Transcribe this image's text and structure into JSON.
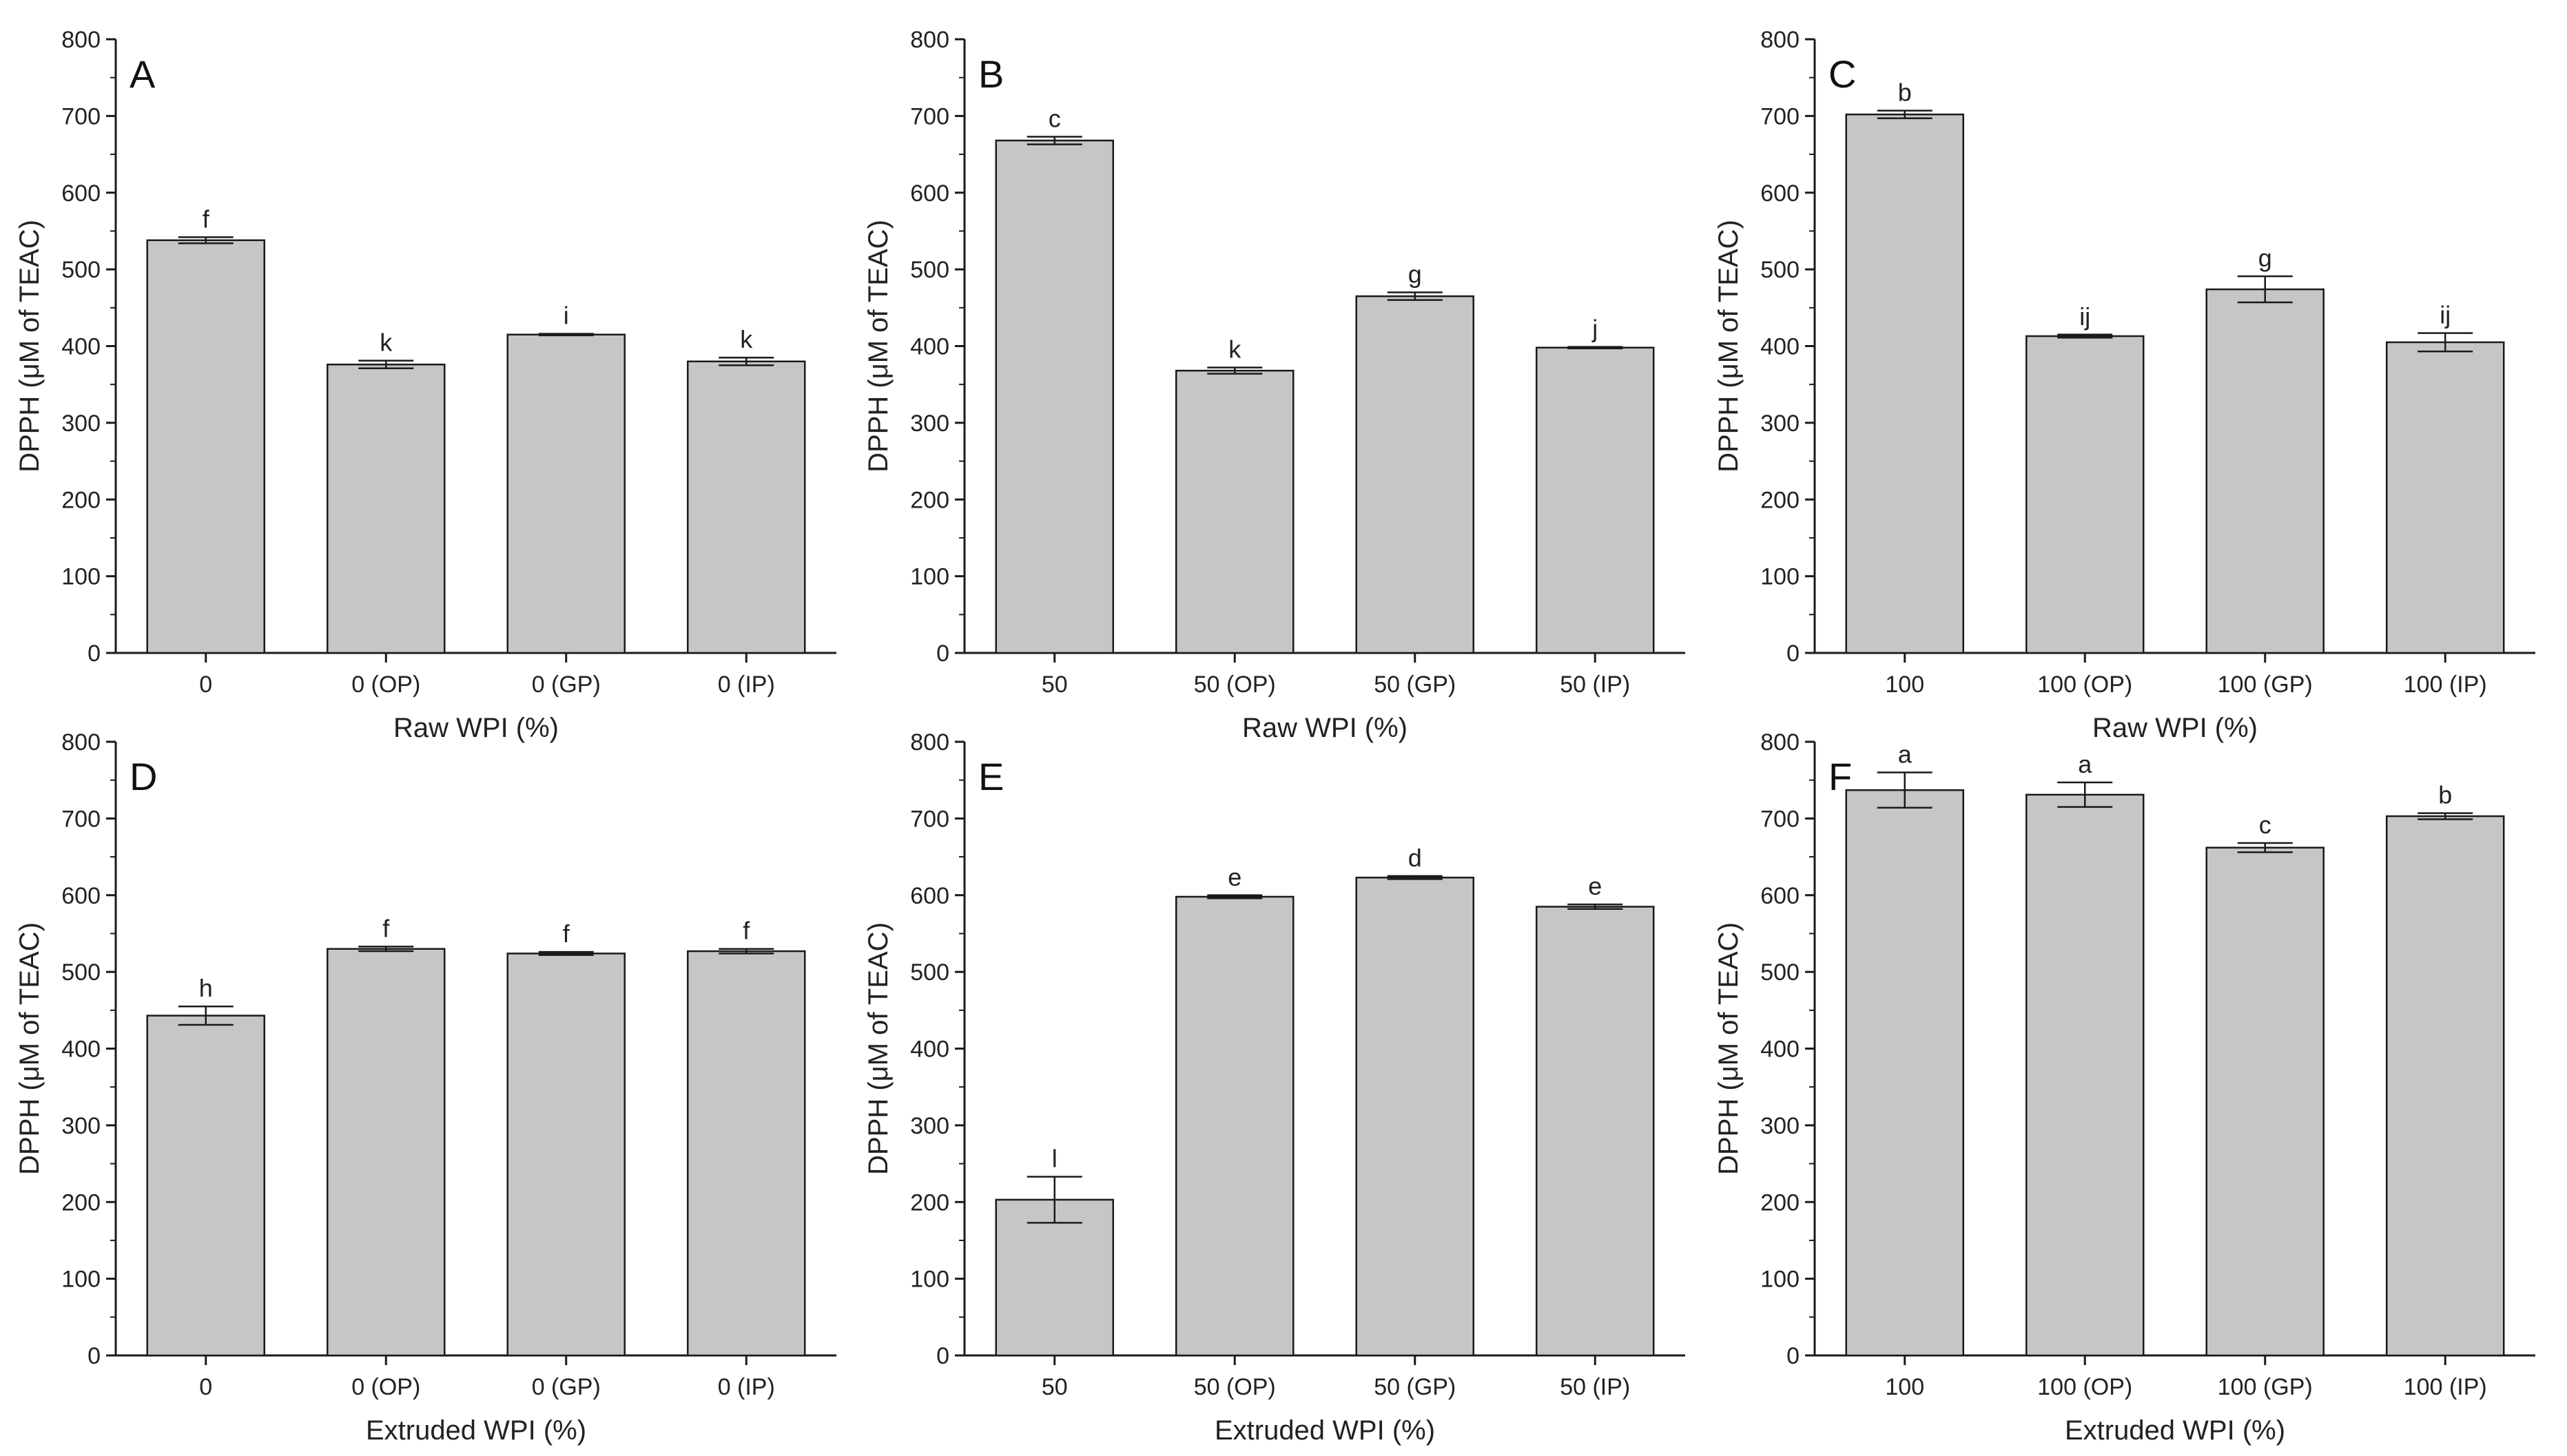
{
  "figure": {
    "style": {
      "bar_fill": "#c6c6c6",
      "bar_stroke": "#1a1a1a",
      "axis_color": "#1a1a1a"
    }
  },
  "chart_data": [
    {
      "type": "bar",
      "panel": "A",
      "categories": [
        "0",
        "0 (OP)",
        "0 (GP)",
        "0 (IP)"
      ],
      "values": [
        538,
        376,
        415,
        380
      ],
      "errors": [
        4,
        5,
        1,
        5
      ],
      "significance": [
        "f",
        "k",
        "i",
        "k"
      ],
      "xlabel": "Raw WPI (%)",
      "ylabel": "DPPH (μM of TEAC)",
      "ylim": [
        0,
        800
      ],
      "yticks": [
        0,
        100,
        200,
        300,
        400,
        500,
        600,
        700,
        800
      ]
    },
    {
      "type": "bar",
      "panel": "B",
      "categories": [
        "50",
        "50 (OP)",
        "50 (GP)",
        "50 (IP)"
      ],
      "values": [
        668,
        368,
        465,
        398
      ],
      "errors": [
        5,
        4,
        5,
        1
      ],
      "significance": [
        "c",
        "k",
        "g",
        "j"
      ],
      "xlabel": "Raw WPI (%)",
      "ylabel": "DPPH (μM of TEAC)",
      "ylim": [
        0,
        800
      ],
      "yticks": [
        0,
        100,
        200,
        300,
        400,
        500,
        600,
        700,
        800
      ]
    },
    {
      "type": "bar",
      "panel": "C",
      "categories": [
        "100",
        "100 (OP)",
        "100 (GP)",
        "100 (IP)"
      ],
      "values": [
        702,
        413,
        474,
        405
      ],
      "errors": [
        5,
        2,
        17,
        12
      ],
      "significance": [
        "b",
        "ij",
        "g",
        "ij"
      ],
      "xlabel": "Raw WPI (%)",
      "ylabel": "DPPH (μM of TEAC)",
      "ylim": [
        0,
        800
      ],
      "yticks": [
        0,
        100,
        200,
        300,
        400,
        500,
        600,
        700,
        800
      ]
    },
    {
      "type": "bar",
      "panel": "D",
      "categories": [
        "0",
        "0 (OP)",
        "0 (GP)",
        "0 (IP)"
      ],
      "values": [
        443,
        530,
        524,
        527
      ],
      "errors": [
        12,
        3,
        2,
        3
      ],
      "significance": [
        "h",
        "f",
        "f",
        "f"
      ],
      "xlabel": "Extruded WPI (%)",
      "ylabel": "DPPH (μM of TEAC)",
      "ylim": [
        0,
        800
      ],
      "yticks": [
        0,
        100,
        200,
        300,
        400,
        500,
        600,
        700,
        800
      ]
    },
    {
      "type": "bar",
      "panel": "E",
      "categories": [
        "50",
        "50 (OP)",
        "50 (GP)",
        "50 (IP)"
      ],
      "values": [
        203,
        598,
        623,
        585
      ],
      "errors": [
        30,
        2,
        2,
        3
      ],
      "significance": [
        "l",
        "e",
        "d",
        "e"
      ],
      "xlabel": "Extruded WPI (%)",
      "ylabel": "DPPH (μM of TEAC)",
      "ylim": [
        0,
        800
      ],
      "yticks": [
        0,
        100,
        200,
        300,
        400,
        500,
        600,
        700,
        800
      ]
    },
    {
      "type": "bar",
      "panel": "F",
      "categories": [
        "100",
        "100 (OP)",
        "100 (GP)",
        "100 (IP)"
      ],
      "values": [
        737,
        731,
        662,
        703
      ],
      "errors": [
        23,
        16,
        6,
        4
      ],
      "significance": [
        "a",
        "a",
        "c",
        "b"
      ],
      "xlabel": "Extruded WPI (%)",
      "ylabel": "DPPH (μM of TEAC)",
      "ylim": [
        0,
        800
      ],
      "yticks": [
        0,
        100,
        200,
        300,
        400,
        500,
        600,
        700,
        800
      ]
    }
  ]
}
